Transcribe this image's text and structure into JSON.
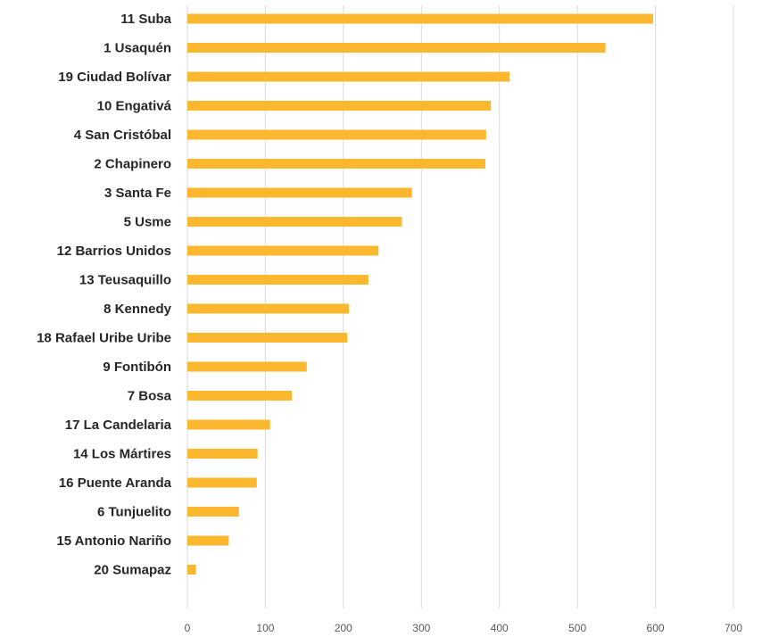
{
  "chart_data": {
    "type": "bar",
    "orientation": "horizontal",
    "categories": [
      "11 Suba",
      "1 Usaquén",
      "19 Ciudad Bolívar",
      "10 Engativá",
      "4 San Cristóbal",
      "2 Chapinero",
      "3 Santa Fe",
      "5 Usme",
      "12 Barrios Unidos",
      "13 Teusaquillo",
      "8 Kennedy",
      "18 Rafael Uribe Uribe",
      "9 Fontibón",
      "7 Bosa",
      "17 La Candelaria",
      "14 Los Mártires",
      "16 Puente Aranda",
      "6 Tunjuelito",
      "15 Antonio Nariño",
      "20 Sumapaz"
    ],
    "values": [
      597,
      536,
      413,
      389,
      383,
      382,
      288,
      275,
      245,
      232,
      207,
      205,
      153,
      134,
      106,
      90,
      89,
      66,
      53,
      11
    ],
    "xlim": [
      0,
      700
    ],
    "xticks": [
      "0",
      "100",
      "200",
      "300",
      "400",
      "500",
      "600",
      "700"
    ],
    "grid": "vertical",
    "title": "",
    "xlabel": "",
    "ylabel": "",
    "colors": {
      "bar": "#fbb72e",
      "grid": "#d9d9d9",
      "category_text": "#262626",
      "tick_text": "#595959"
    }
  }
}
